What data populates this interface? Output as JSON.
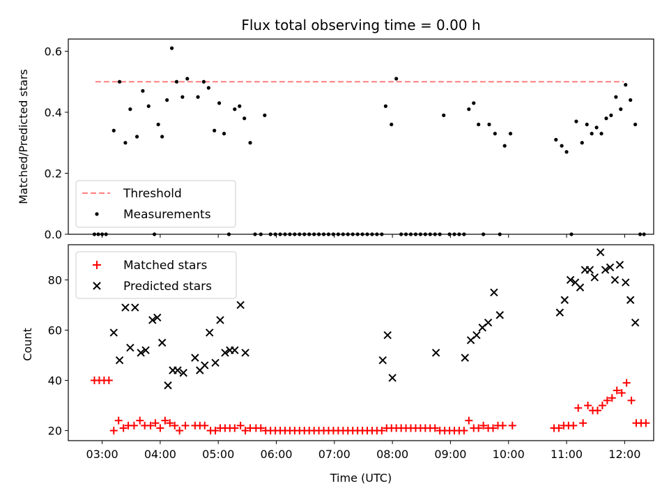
{
  "chart_data": [
    {
      "type": "scatter",
      "title": "Flux total observing time = 0.00 h",
      "xlabel": "",
      "ylabel": "Matched/Predicted stars",
      "x_axis": "time (UTC)",
      "xlim": [
        "02:25",
        "12:30"
      ],
      "ylim": [
        0,
        0.64
      ],
      "yticks": [
        0.0,
        0.2,
        0.4,
        0.6
      ],
      "ytick_labels": [
        "0.0",
        "0.2",
        "0.4",
        "0.6"
      ],
      "grid": false,
      "legend": {
        "position": "lower-left",
        "entries": [
          "Threshold",
          "Measurements"
        ]
      },
      "threshold": {
        "name": "Threshold",
        "value": 0.5,
        "x_range": [
          "02:53",
          "11:59"
        ],
        "color": "#ff7f7f",
        "style": "dashed"
      },
      "series": [
        {
          "name": "Measurements",
          "color": "#000000",
          "marker": "dot",
          "points": [
            [
              "02:52",
              0
            ],
            [
              "02:56",
              0
            ],
            [
              "03:00",
              0
            ],
            [
              "03:04",
              0
            ],
            [
              "03:12",
              0.34
            ],
            [
              "03:18",
              0.5
            ],
            [
              "03:24",
              0.3
            ],
            [
              "03:29",
              0.41
            ],
            [
              "03:36",
              0.32
            ],
            [
              "03:42",
              0.47
            ],
            [
              "03:48",
              0.42
            ],
            [
              "03:54",
              0.0
            ],
            [
              "03:58",
              0.36
            ],
            [
              "04:02",
              0.32
            ],
            [
              "04:07",
              0.44
            ],
            [
              "04:12",
              0.61
            ],
            [
              "04:17",
              0.5
            ],
            [
              "04:23",
              0.45
            ],
            [
              "04:28",
              0.51
            ],
            [
              "04:39",
              0.45
            ],
            [
              "04:45",
              0.5
            ],
            [
              "04:50",
              0.48
            ],
            [
              "04:56",
              0.34
            ],
            [
              "05:01",
              0.43
            ],
            [
              "05:06",
              0.33
            ],
            [
              "05:11",
              0.0
            ],
            [
              "05:17",
              0.41
            ],
            [
              "05:22",
              0.42
            ],
            [
              "05:27",
              0.38
            ],
            [
              "05:33",
              0.3
            ],
            [
              "05:38",
              0
            ],
            [
              "05:44",
              0
            ],
            [
              "05:48",
              0.39
            ],
            [
              "05:54",
              0
            ],
            [
              "05:59",
              0
            ],
            [
              "06:04",
              0
            ],
            [
              "06:09",
              0
            ],
            [
              "06:14",
              0
            ],
            [
              "06:19",
              0
            ],
            [
              "06:24",
              0
            ],
            [
              "06:29",
              0
            ],
            [
              "06:34",
              0
            ],
            [
              "06:39",
              0
            ],
            [
              "06:44",
              0
            ],
            [
              "06:49",
              0
            ],
            [
              "06:54",
              0
            ],
            [
              "06:59",
              0
            ],
            [
              "07:04",
              0
            ],
            [
              "07:09",
              0
            ],
            [
              "07:14",
              0
            ],
            [
              "07:19",
              0
            ],
            [
              "07:24",
              0
            ],
            [
              "07:29",
              0
            ],
            [
              "07:34",
              0
            ],
            [
              "07:39",
              0
            ],
            [
              "07:44",
              0
            ],
            [
              "07:49",
              0
            ],
            [
              "07:53",
              0.42
            ],
            [
              "07:59",
              0.36
            ],
            [
              "08:04",
              0.51
            ],
            [
              "08:09",
              0
            ],
            [
              "08:14",
              0
            ],
            [
              "08:19",
              0
            ],
            [
              "08:24",
              0
            ],
            [
              "08:29",
              0
            ],
            [
              "08:34",
              0
            ],
            [
              "08:39",
              0
            ],
            [
              "08:44",
              0
            ],
            [
              "08:49",
              0
            ],
            [
              "08:53",
              0.39
            ],
            [
              "08:59",
              0
            ],
            [
              "09:04",
              0
            ],
            [
              "09:09",
              0
            ],
            [
              "09:14",
              0
            ],
            [
              "09:19",
              0.41
            ],
            [
              "09:24",
              0.43
            ],
            [
              "09:29",
              0.36
            ],
            [
              "09:34",
              0
            ],
            [
              "09:40",
              0.36
            ],
            [
              "09:46",
              0.33
            ],
            [
              "09:51",
              0
            ],
            [
              "09:56",
              0.29
            ],
            [
              "10:02",
              0.33
            ],
            [
              "10:49",
              0.31
            ],
            [
              "10:55",
              0.29
            ],
            [
              "11:00",
              0.27
            ],
            [
              "11:05",
              0
            ],
            [
              "11:10",
              0.37
            ],
            [
              "11:16",
              0.3
            ],
            [
              "11:21",
              0.36
            ],
            [
              "11:26",
              0.33
            ],
            [
              "11:31",
              0.35
            ],
            [
              "11:36",
              0.33
            ],
            [
              "11:41",
              0.38
            ],
            [
              "11:46",
              0.39
            ],
            [
              "11:51",
              0.45
            ],
            [
              "11:56",
              0.41
            ],
            [
              "12:01",
              0.49
            ],
            [
              "12:06",
              0.44
            ],
            [
              "12:11",
              0.36
            ],
            [
              "12:16",
              0
            ],
            [
              "12:20",
              0
            ]
          ]
        }
      ]
    },
    {
      "type": "scatter",
      "title": "",
      "xlabel": "Time (UTC)",
      "ylabel": "Count",
      "x_axis": "time (UTC)",
      "xlim": [
        "02:25",
        "12:30"
      ],
      "ylim": [
        16,
        94
      ],
      "yticks": [
        20,
        40,
        60,
        80
      ],
      "ytick_labels": [
        "20",
        "40",
        "60",
        "80"
      ],
      "xticks": [
        "03:00",
        "04:00",
        "05:00",
        "06:00",
        "07:00",
        "08:00",
        "09:00",
        "10:00",
        "11:00",
        "12:00"
      ],
      "grid": false,
      "legend": {
        "position": "upper-left",
        "entries": [
          "Matched stars",
          "Predicted stars"
        ]
      },
      "series": [
        {
          "name": "Matched stars",
          "color": "#ff0000",
          "marker": "plus",
          "points": [
            [
              "02:52",
              40
            ],
            [
              "02:57",
              40
            ],
            [
              "03:02",
              40
            ],
            [
              "03:07",
              40
            ],
            [
              "03:12",
              20
            ],
            [
              "03:17",
              24
            ],
            [
              "03:22",
              21
            ],
            [
              "03:27",
              22
            ],
            [
              "03:33",
              22
            ],
            [
              "03:39",
              24
            ],
            [
              "03:44",
              22
            ],
            [
              "03:50",
              22
            ],
            [
              "03:55",
              23
            ],
            [
              "04:00",
              21
            ],
            [
              "04:05",
              24
            ],
            [
              "04:10",
              23
            ],
            [
              "04:15",
              22
            ],
            [
              "04:20",
              20
            ],
            [
              "04:26",
              22
            ],
            [
              "04:36",
              22
            ],
            [
              "04:41",
              22
            ],
            [
              "04:46",
              22
            ],
            [
              "04:52",
              20
            ],
            [
              "04:57",
              20
            ],
            [
              "05:02",
              21
            ],
            [
              "05:07",
              21
            ],
            [
              "05:12",
              21
            ],
            [
              "05:17",
              21
            ],
            [
              "05:23",
              22
            ],
            [
              "05:28",
              20
            ],
            [
              "05:33",
              21
            ],
            [
              "05:39",
              21
            ],
            [
              "05:44",
              21
            ],
            [
              "05:49",
              20
            ],
            [
              "05:54",
              20
            ],
            [
              "05:59",
              20
            ],
            [
              "06:04",
              20
            ],
            [
              "06:09",
              20
            ],
            [
              "06:14",
              20
            ],
            [
              "06:19",
              20
            ],
            [
              "06:24",
              20
            ],
            [
              "06:29",
              20
            ],
            [
              "06:34",
              20
            ],
            [
              "06:39",
              20
            ],
            [
              "06:44",
              20
            ],
            [
              "06:49",
              20
            ],
            [
              "06:54",
              20
            ],
            [
              "06:59",
              20
            ],
            [
              "07:04",
              20
            ],
            [
              "07:09",
              20
            ],
            [
              "07:14",
              20
            ],
            [
              "07:19",
              20
            ],
            [
              "07:24",
              20
            ],
            [
              "07:29",
              20
            ],
            [
              "07:34",
              20
            ],
            [
              "07:39",
              20
            ],
            [
              "07:44",
              20
            ],
            [
              "07:49",
              20
            ],
            [
              "07:54",
              21
            ],
            [
              "07:59",
              21
            ],
            [
              "08:04",
              21
            ],
            [
              "08:09",
              21
            ],
            [
              "08:14",
              21
            ],
            [
              "08:19",
              21
            ],
            [
              "08:24",
              21
            ],
            [
              "08:29",
              21
            ],
            [
              "08:34",
              21
            ],
            [
              "08:39",
              21
            ],
            [
              "08:44",
              21
            ],
            [
              "08:49",
              20
            ],
            [
              "08:54",
              20
            ],
            [
              "08:59",
              20
            ],
            [
              "09:04",
              20
            ],
            [
              "09:09",
              20
            ],
            [
              "09:14",
              20
            ],
            [
              "09:19",
              24
            ],
            [
              "09:24",
              21
            ],
            [
              "09:29",
              21
            ],
            [
              "09:34",
              22
            ],
            [
              "09:39",
              21
            ],
            [
              "09:44",
              21
            ],
            [
              "09:49",
              22
            ],
            [
              "09:54",
              22
            ],
            [
              "10:04",
              22
            ],
            [
              "10:47",
              21
            ],
            [
              "10:52",
              21
            ],
            [
              "10:57",
              22
            ],
            [
              "11:02",
              22
            ],
            [
              "11:07",
              22
            ],
            [
              "11:12",
              29
            ],
            [
              "11:17",
              23
            ],
            [
              "11:22",
              30
            ],
            [
              "11:27",
              28
            ],
            [
              "11:32",
              28
            ],
            [
              "11:37",
              30
            ],
            [
              "11:42",
              32
            ],
            [
              "11:47",
              33
            ],
            [
              "11:52",
              36
            ],
            [
              "11:57",
              35
            ],
            [
              "12:02",
              39
            ],
            [
              "12:07",
              32
            ],
            [
              "12:12",
              23
            ],
            [
              "12:17",
              23
            ],
            [
              "12:22",
              23
            ]
          ]
        },
        {
          "name": "Predicted stars",
          "color": "#000000",
          "marker": "x",
          "points": [
            [
              "03:12",
              59
            ],
            [
              "03:18",
              48
            ],
            [
              "03:24",
              69
            ],
            [
              "03:29",
              53
            ],
            [
              "03:34",
              69
            ],
            [
              "03:40",
              51
            ],
            [
              "03:45",
              52
            ],
            [
              "03:52",
              64
            ],
            [
              "03:57",
              65
            ],
            [
              "04:02",
              55
            ],
            [
              "04:08",
              38
            ],
            [
              "04:13",
              44
            ],
            [
              "04:18",
              44
            ],
            [
              "04:24",
              43
            ],
            [
              "04:36",
              49
            ],
            [
              "04:41",
              44
            ],
            [
              "04:46",
              46
            ],
            [
              "04:51",
              59
            ],
            [
              "04:57",
              47
            ],
            [
              "05:02",
              64
            ],
            [
              "05:07",
              51
            ],
            [
              "05:12",
              52
            ],
            [
              "05:17",
              52
            ],
            [
              "05:23",
              70
            ],
            [
              "05:28",
              51
            ],
            [
              "07:50",
              48
            ],
            [
              "07:55",
              58
            ],
            [
              "08:00",
              41
            ],
            [
              "08:45",
              51
            ],
            [
              "09:15",
              49
            ],
            [
              "09:21",
              56
            ],
            [
              "09:27",
              58
            ],
            [
              "09:33",
              61
            ],
            [
              "09:39",
              63
            ],
            [
              "09:45",
              75
            ],
            [
              "09:51",
              66
            ],
            [
              "10:53",
              67
            ],
            [
              "10:58",
              72
            ],
            [
              "11:04",
              80
            ],
            [
              "11:09",
              79
            ],
            [
              "11:14",
              77
            ],
            [
              "11:19",
              84
            ],
            [
              "11:24",
              84
            ],
            [
              "11:29",
              81
            ],
            [
              "11:35",
              91
            ],
            [
              "11:40",
              84
            ],
            [
              "11:45",
              85
            ],
            [
              "11:50",
              80
            ],
            [
              "11:55",
              86
            ],
            [
              "12:01",
              79
            ],
            [
              "12:06",
              72
            ],
            [
              "12:11",
              63
            ]
          ]
        }
      ]
    }
  ]
}
